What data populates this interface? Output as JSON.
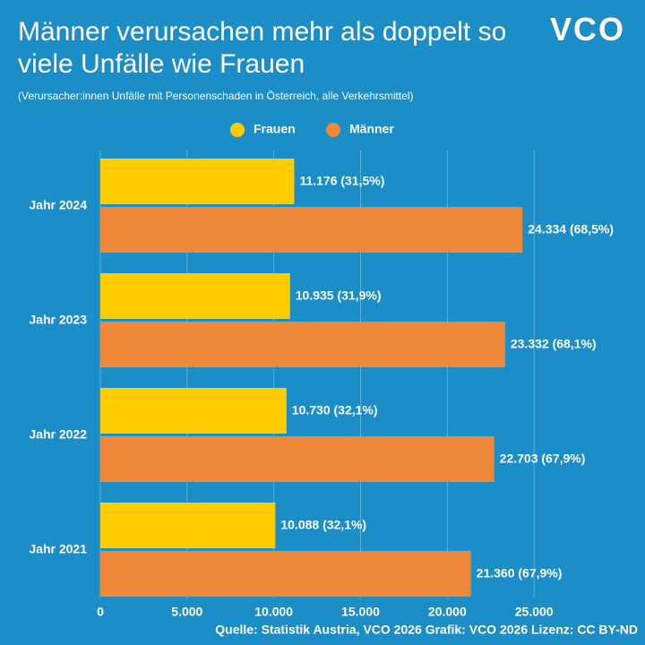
{
  "chart_data": {
    "type": "bar",
    "orientation": "horizontal",
    "title": "Männer verursachen mehr als doppelt so viele Unfälle wie Frauen",
    "subtitle": "(Verursacher:innen Unfälle mit Personenschaden in Österreich, alle Verkehrsmittel)",
    "logo": "VCO",
    "source": "Quelle: Statistik Austria, VCO 2026 Grafik: VCO 2026 Lizenz: CC BY-ND",
    "categories": [
      "Jahr 2024",
      "Jahr 2023",
      "Jahr 2022",
      "Jahr 2021"
    ],
    "series": [
      {
        "name": "Frauen",
        "color": "#ffcc00",
        "values": [
          11176,
          10935,
          10730,
          10088
        ],
        "value_labels": [
          "11.176 (31,5%)",
          "10.935 (31,9%)",
          "10.730 (32,1%)",
          "10.088 (32,1%)"
        ]
      },
      {
        "name": "Männer",
        "color": "#f0883a",
        "values": [
          24334,
          23332,
          22703,
          21360
        ],
        "value_labels": [
          "24.334 (68,5%)",
          "23.332 (68,1%)",
          "22.703 (67,9%)",
          "21.360 (67,9%)"
        ]
      }
    ],
    "xlim": [
      0,
      30000
    ],
    "xticks": [
      0,
      {
        "value": 5000,
        "label": "5.000"
      },
      {
        "value": 10000,
        "label": "10.000"
      },
      {
        "value": 15000,
        "label": "15.000"
      },
      {
        "value": 20000,
        "label": "20.000"
      },
      {
        "value": 25000,
        "label": "25.000"
      }
    ],
    "grid": true,
    "legend": "top"
  }
}
